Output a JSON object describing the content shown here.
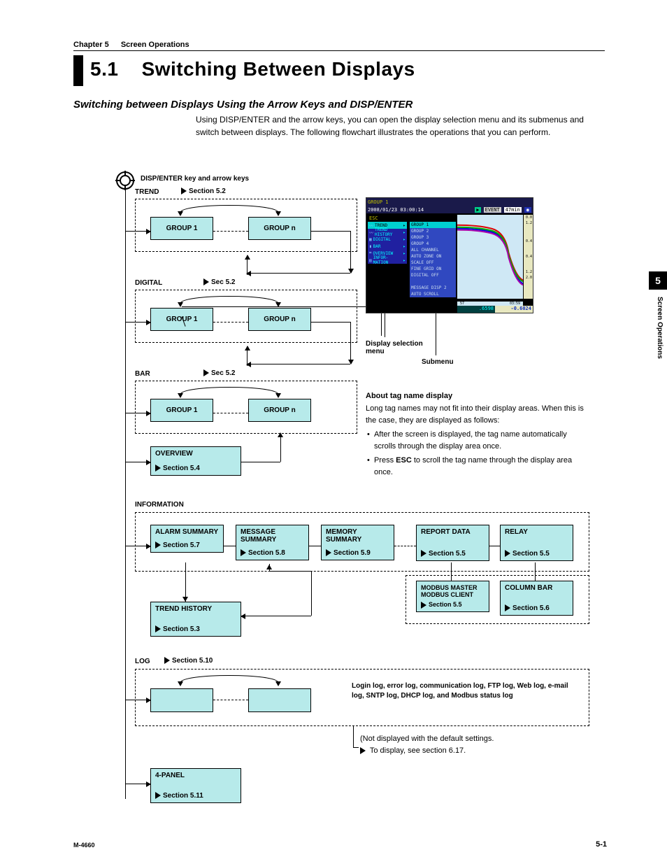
{
  "header": {
    "chapter_label": "Chapter 5",
    "chapter_title": "Screen Operations",
    "section_number": "5.1",
    "section_title": "Switching Between Displays"
  },
  "subhead": "Switching between Displays Using the Arrow Keys and DISP/ENTER",
  "intro": "Using DISP/ENTER and the arrow keys, you can open the display selection menu and its submenus and switch between displays. The following flowchart illustrates the operations that you can perform.",
  "side_tab": {
    "number": "5",
    "label": "Screen Operations"
  },
  "footer": {
    "left": "M-4660",
    "right": "5-1"
  },
  "flow": {
    "root": "DISP/ENTER key and arrow keys",
    "trend": {
      "label": "TREND",
      "ref": "Section 5.2",
      "g1": "GROUP 1",
      "gn": "GROUP n"
    },
    "digital": {
      "label": "DIGITAL",
      "ref": "Sec 5.2",
      "g1": "GROUP 1",
      "gn": "GROUP n"
    },
    "bar": {
      "label": "BAR",
      "ref": "Sec 5.2",
      "g1": "GROUP 1",
      "gn": "GROUP n"
    },
    "overview": {
      "label": "OVERVIEW",
      "ref": "Section 5.4"
    },
    "information": {
      "label": "INFORMATION"
    },
    "alarm": {
      "label": "ALARM SUMMARY",
      "ref": "Section 5.7"
    },
    "message": {
      "label": "MESSAGE SUMMARY",
      "ref": "Section 5.8"
    },
    "memory": {
      "label": "MEMORY SUMMARY",
      "ref": "Section 5.9"
    },
    "report": {
      "label": "REPORT DATA",
      "ref": "Section 5.5"
    },
    "relay": {
      "label": "RELAY",
      "ref": "Section 5.5"
    },
    "modbus": {
      "label": "MODBUS MASTER MODBUS CLIENT",
      "ref": "Section 5.5"
    },
    "column": {
      "label": "COLUMN BAR",
      "ref": "Section 5.6"
    },
    "trendhist": {
      "label": "TREND HISTORY",
      "ref": "Section 5.3"
    },
    "log": {
      "label": "LOG",
      "ref": "Section 5.10",
      "desc": "Login log, error log, communication log, FTP log, Web log, e-mail log, SNTP log, DHCP log, and Modbus status log"
    },
    "log_note1": "(Not displayed with the default settings.",
    "log_note2": "To display, see section 6.17.",
    "panel4": {
      "label": "4-PANEL",
      "ref": "Section 5.11"
    }
  },
  "callouts": {
    "display_menu": "Display selection menu",
    "submenu": "Submenu"
  },
  "about": {
    "title": "About tag name display",
    "p1": "Long tag names may not fit into their display areas. When this is the case, they are displayed as follows:",
    "b1": "After the screen is displayed, the tag name automatically scrolls through the display area once.",
    "b2a": "Press ",
    "b2b": "ESC",
    "b2c": " to scroll the tag name through the display area once."
  },
  "screenshot": {
    "header": "GROUP 1",
    "timestamp": "2008/01/23 03:00:14",
    "badge1": "EVENT",
    "badge2": "47min",
    "esc": "ESC",
    "menu": [
      "TREND",
      "TREND HISTORY",
      "DIGITAL",
      "BAR",
      "OVERVIEW",
      "INFOR-MATION"
    ],
    "submenu": [
      "GROUP 1",
      "GROUP 2",
      "GROUP 3",
      "GROUP 4",
      "ALL CHANNEL",
      "AUTO ZONE ON",
      "SCALE OFF",
      "FINE GRID ON",
      "DIGITAL OFF",
      "",
      "MESSAGE DISP 2",
      "AUTO SCROLL"
    ],
    "vals": {
      "v1": ".6598",
      "v2": "-0.6024"
    },
    "scale": [
      "0.0",
      "1.2",
      "",
      "0.4",
      "",
      "0.4",
      "",
      "1.2",
      "2.0"
    ],
    "xticks": [
      "57",
      "03:59"
    ],
    "colors": {
      "menu_bg": "#2020a0",
      "submenu_bg": "#3048c0",
      "highlight": "#00d0d0",
      "graph_bg": "#cfe8f5",
      "v1_color": "#00b0b0",
      "v2_color": "#1030c0"
    }
  }
}
